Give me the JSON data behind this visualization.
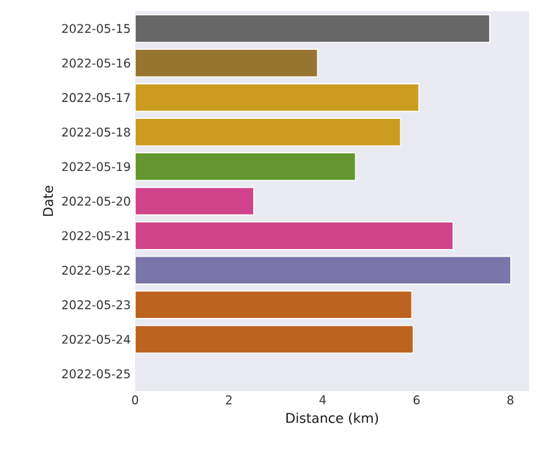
{
  "chart_data": {
    "type": "bar",
    "orientation": "horizontal",
    "xlabel": "Distance (km)",
    "ylabel": "Date",
    "categories": [
      "2022-05-15",
      "2022-05-16",
      "2022-05-17",
      "2022-05-18",
      "2022-05-19",
      "2022-05-20",
      "2022-05-21",
      "2022-05-22",
      "2022-05-23",
      "2022-05-24",
      "2022-05-25"
    ],
    "values": [
      7.56,
      3.89,
      6.05,
      5.66,
      4.7,
      2.53,
      6.78,
      8.01,
      5.9,
      5.93,
      null
    ],
    "colors": [
      "#666666",
      "#977530",
      "#cb9c1f",
      "#cb9c1f",
      "#64962f",
      "#d0438a",
      "#d0438a",
      "#7b76aa",
      "#be621f",
      "#be621f",
      "#666666"
    ],
    "xlim": [
      0,
      8.4
    ],
    "xticks": [
      0,
      2,
      4,
      6,
      8
    ]
  }
}
